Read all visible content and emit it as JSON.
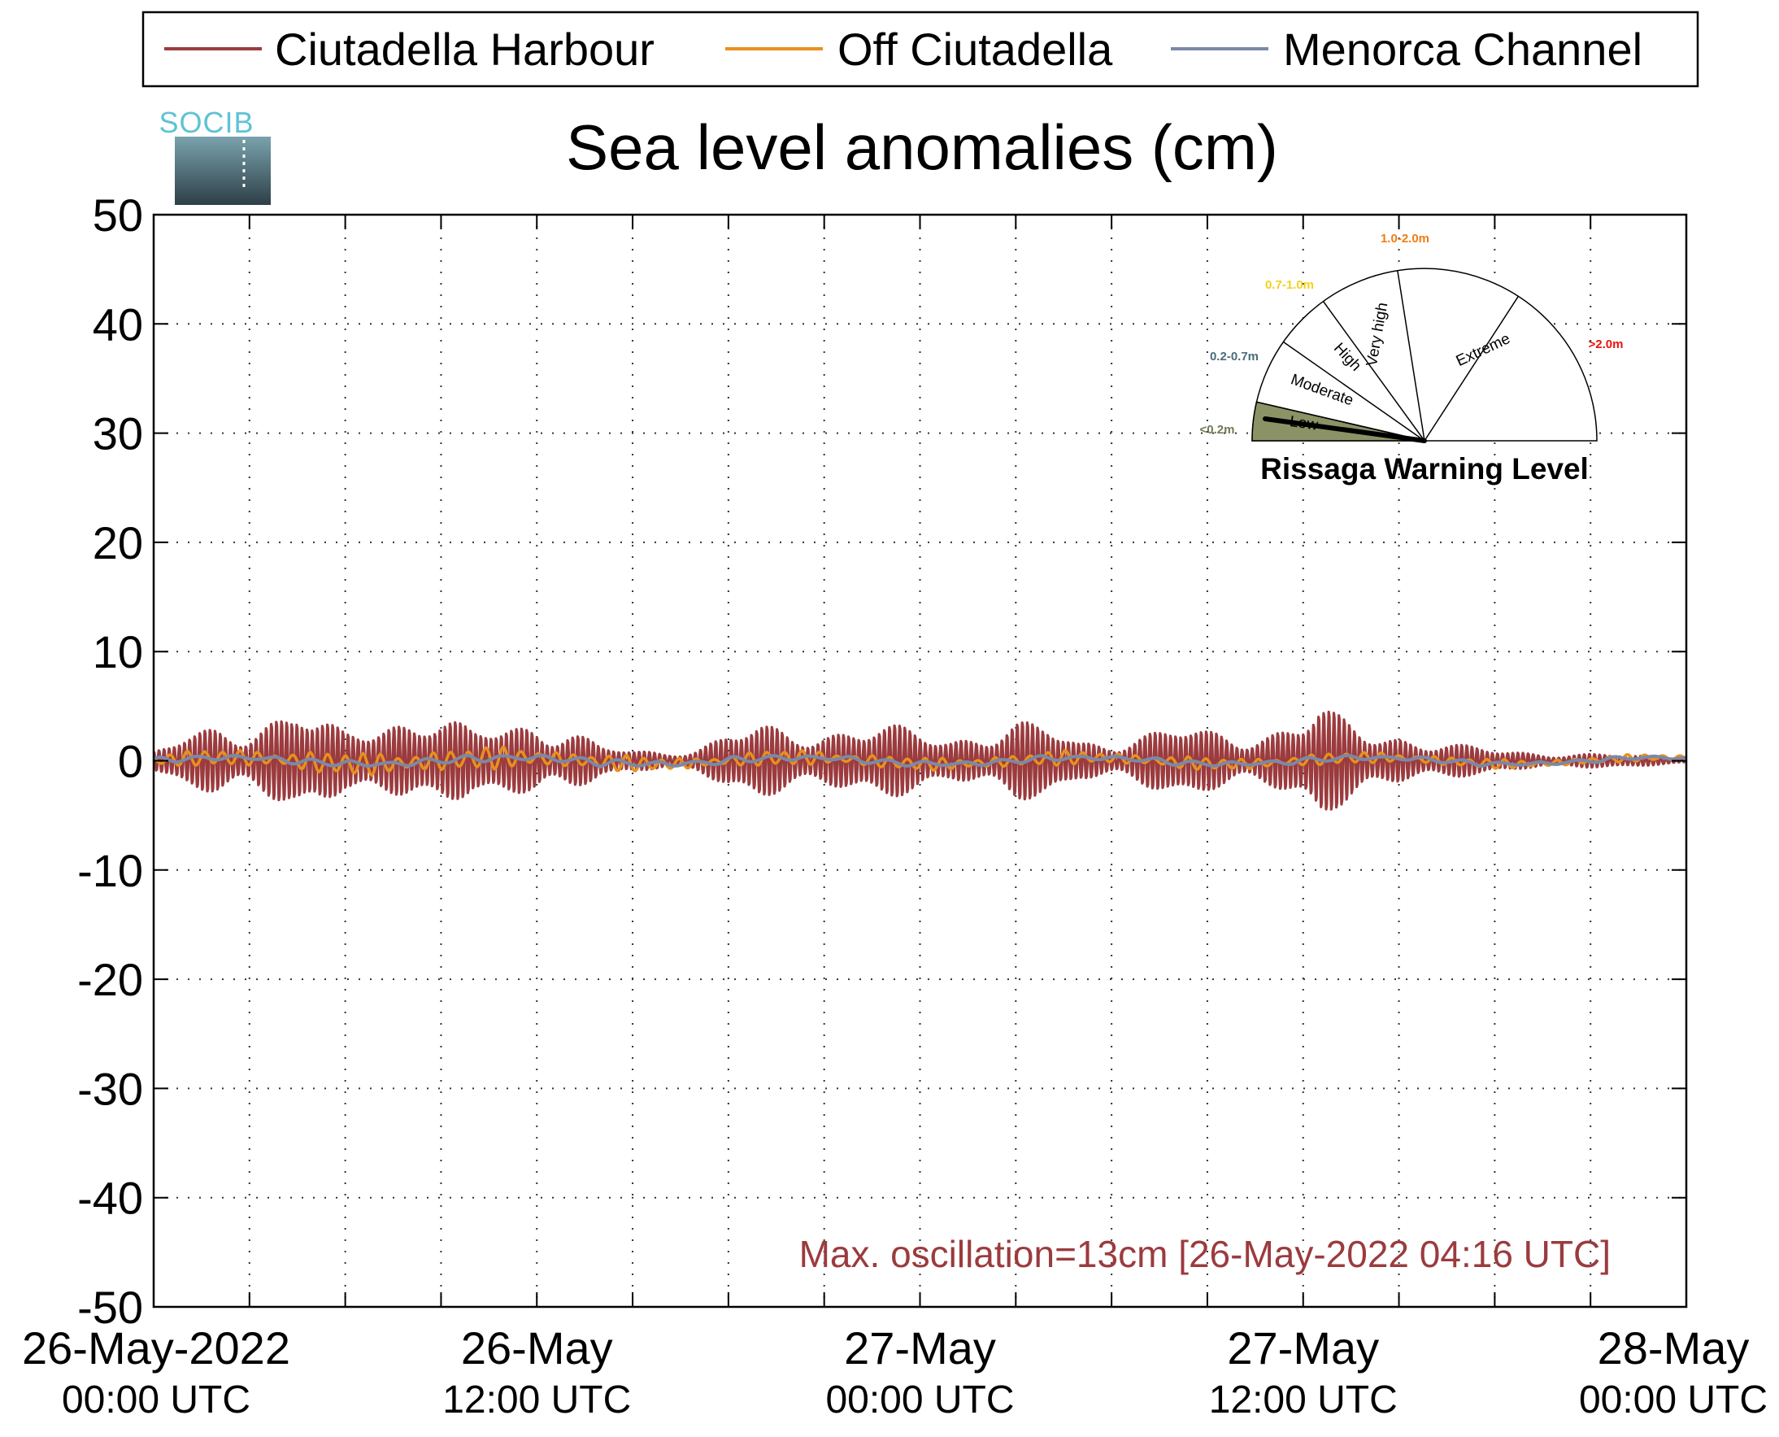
{
  "chart_data": {
    "type": "line",
    "title": "Sea level anomalies (cm)",
    "ylim": [
      -50,
      50
    ],
    "yticks": [
      "50",
      "40",
      "30",
      "20",
      "10",
      "0",
      "-10",
      "-20",
      "-30",
      "-40",
      "-50"
    ],
    "x_range_hours": [
      0,
      48
    ],
    "xtick_labels": [
      {
        "hour": 0,
        "line1": "26-May-2022",
        "line2": "00:00 UTC"
      },
      {
        "hour": 12,
        "line1": "26-May",
        "line2": "12:00 UTC"
      },
      {
        "hour": 24,
        "line1": "27-May",
        "line2": "00:00 UTC"
      },
      {
        "hour": 36,
        "line1": "27-May",
        "line2": "12:00 UTC"
      },
      {
        "hour": 48,
        "line1": "28-May",
        "line2": "00:00 UTC"
      }
    ],
    "grid": true,
    "legend_position": "top",
    "series": [
      {
        "name": "Ciutadella Harbour",
        "color": "#9b3b3e",
        "envelope_hours": [
          0,
          1,
          2,
          3,
          4,
          4.5,
          5,
          6,
          7,
          8,
          8.5,
          9,
          10,
          11,
          12,
          13,
          14,
          15,
          16,
          17,
          18,
          19,
          20,
          21,
          22,
          23,
          24,
          25,
          26,
          27,
          28,
          29,
          30,
          31,
          32,
          33,
          34,
          35,
          36,
          36.5,
          37,
          38,
          39,
          40,
          41,
          42,
          43,
          44,
          45,
          46,
          47,
          48
        ],
        "envelope_amplitude_cm": [
          1,
          2.5,
          3.5,
          4,
          5.5,
          6.2,
          4,
          3,
          4.5,
          5.2,
          5.5,
          4.5,
          3,
          4,
          4.5,
          3.5,
          1.5,
          1,
          1,
          1.5,
          3,
          3.5,
          3,
          3.5,
          4,
          3.5,
          3,
          2.5,
          3.5,
          4,
          3.5,
          2,
          2.5,
          3,
          3.5,
          3,
          3,
          3.5,
          4.5,
          5.6,
          4.5,
          3.5,
          3,
          2,
          1.5,
          1.2,
          1,
          0.8,
          0.7,
          0.6,
          0.5,
          0.4
        ]
      },
      {
        "name": "Off Ciutadella",
        "color": "#e8901e",
        "envelope_hours": [
          0,
          4,
          8,
          12,
          14,
          18,
          20,
          24,
          28,
          32,
          36,
          40,
          44,
          48
        ],
        "envelope_amplitude_cm": [
          0.6,
          1,
          1.2,
          1,
          0.8,
          0.6,
          0.8,
          0.6,
          0.7,
          0.6,
          0.6,
          0.5,
          0.4,
          0.3
        ]
      },
      {
        "name": "Menorca Channel",
        "color": "#7b88a8",
        "envelope_hours": [
          0,
          12,
          24,
          36,
          48
        ],
        "envelope_amplitude_cm": [
          0.3,
          0.4,
          0.3,
          0.3,
          0.2
        ]
      }
    ],
    "annotation": {
      "text": "Max. oscillation=13cm [26-May-2022 04:16 UTC]",
      "color": "#9b3b3e"
    }
  },
  "logo": {
    "text": "SOCIB"
  },
  "gauge": {
    "title": "Rissaga Warning Level",
    "segments": [
      {
        "label": "Low",
        "range": "<0.2m",
        "range_color": "#6e7a52"
      },
      {
        "label": "Moderate",
        "range": "0.2-0.7m",
        "range_color": "#4d6b7a"
      },
      {
        "label": "High",
        "range": "0.7-1.0m",
        "range_color": "#f2d21a"
      },
      {
        "label": "Very high",
        "range": "1.0-2.0m",
        "range_color": "#f07d12"
      },
      {
        "label": "Extreme",
        "range": ">2.0m",
        "range_color": "#e8140c"
      }
    ],
    "active_segment": "Low",
    "active_fill": "#8b9366"
  }
}
